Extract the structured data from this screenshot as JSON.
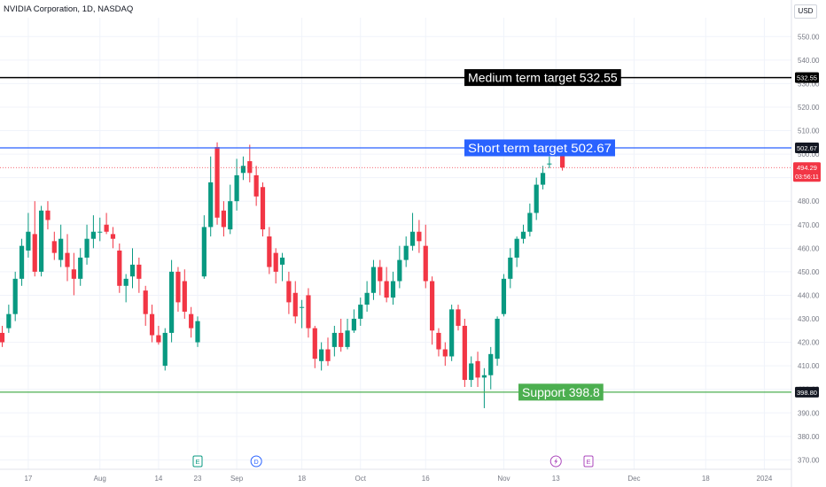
{
  "header": {
    "symbol_title": "NVIDIA Corporation, 1D, NASDAQ",
    "currency": "USD"
  },
  "colors": {
    "up": "#089981",
    "down": "#f23645",
    "medium_line": "#000000",
    "short_line": "#2962ff",
    "support_line": "#4caf50",
    "price_line": "#f23645",
    "grid": "#f0f3fa",
    "axis_text": "#787b86"
  },
  "chart_data": {
    "type": "candlestick",
    "ylim": [
      366,
      558
    ],
    "y_ticks": [
      370,
      380,
      390,
      400,
      410,
      420,
      430,
      440,
      450,
      460,
      470,
      480,
      490,
      500,
      510,
      520,
      530,
      540,
      550
    ],
    "x_tick_labels": [
      {
        "label": "17",
        "bar": 4
      },
      {
        "label": "Aug",
        "bar": 15
      },
      {
        "label": "14",
        "bar": 24
      },
      {
        "label": "23",
        "bar": 30
      },
      {
        "label": "Sep",
        "bar": 36
      },
      {
        "label": "18",
        "bar": 46
      },
      {
        "label": "Oct",
        "bar": 55
      },
      {
        "label": "16",
        "bar": 65
      },
      {
        "label": "Nov",
        "bar": 77
      },
      {
        "label": "13",
        "bar": 85
      },
      {
        "label": "Dec",
        "bar": 97
      },
      {
        "label": "18",
        "bar": 108
      },
      {
        "label": "2024",
        "bar": 117
      }
    ],
    "candles": [
      [
        424,
        420,
        427,
        418
      ],
      [
        426,
        432,
        436,
        424
      ],
      [
        432,
        447,
        450,
        429
      ],
      [
        447,
        461,
        464,
        444
      ],
      [
        459,
        467,
        475,
        456
      ],
      [
        466,
        450,
        480,
        448
      ],
      [
        450,
        476,
        478,
        448
      ],
      [
        476,
        472,
        480,
        468
      ],
      [
        463,
        458,
        467,
        455
      ],
      [
        455,
        464,
        470,
        452
      ],
      [
        458,
        452,
        466,
        446
      ],
      [
        451,
        447,
        458,
        440
      ],
      [
        447,
        456,
        460,
        444
      ],
      [
        456,
        464,
        470,
        453
      ],
      [
        464,
        467,
        474,
        460
      ],
      [
        467,
        467,
        473,
        463
      ],
      [
        470,
        467,
        475,
        466
      ],
      [
        466,
        464,
        469,
        460
      ],
      [
        459,
        444,
        462,
        441
      ],
      [
        444,
        447,
        449,
        437
      ],
      [
        448,
        453,
        460,
        443
      ],
      [
        453,
        447,
        456,
        441
      ],
      [
        442,
        432,
        444,
        427
      ],
      [
        432,
        423,
        436,
        420
      ],
      [
        423,
        420,
        427,
        419
      ],
      [
        410,
        424,
        426,
        408
      ],
      [
        424,
        450,
        455,
        420
      ],
      [
        450,
        437,
        452,
        433
      ],
      [
        446,
        433,
        451,
        430
      ],
      [
        432,
        426,
        435,
        422
      ],
      [
        420,
        429,
        431,
        418
      ],
      [
        448,
        469,
        474,
        447
      ],
      [
        469,
        488,
        499,
        465
      ],
      [
        503,
        473,
        505,
        470
      ],
      [
        476,
        469,
        480,
        465
      ],
      [
        468,
        480,
        487,
        466
      ],
      [
        480,
        491,
        498,
        476
      ],
      [
        492,
        495,
        499,
        489
      ],
      [
        497,
        492,
        504,
        488
      ],
      [
        491,
        482,
        495,
        478
      ],
      [
        486,
        468,
        488,
        465
      ],
      [
        465,
        452,
        469,
        449
      ],
      [
        458,
        450,
        460,
        445
      ],
      [
        453,
        456,
        458,
        446
      ],
      [
        446,
        437,
        450,
        432
      ],
      [
        441,
        431,
        446,
        428
      ],
      [
        435,
        435,
        438,
        426
      ],
      [
        440,
        426,
        443,
        422
      ],
      [
        426,
        413,
        427,
        409
      ],
      [
        412,
        417,
        420,
        408
      ],
      [
        417,
        412,
        422,
        410
      ],
      [
        418,
        424,
        427,
        414
      ],
      [
        424,
        418,
        430,
        416
      ],
      [
        418,
        425,
        430,
        417
      ],
      [
        425,
        430,
        434,
        424
      ],
      [
        430,
        436,
        439,
        427
      ],
      [
        436,
        441,
        446,
        433
      ],
      [
        441,
        452,
        455,
        438
      ],
      [
        452,
        446,
        455,
        440
      ],
      [
        446,
        439,
        452,
        437
      ],
      [
        439,
        446,
        450,
        436
      ],
      [
        446,
        455,
        461,
        443
      ],
      [
        455,
        461,
        465,
        452
      ],
      [
        461,
        467,
        475,
        459
      ],
      [
        467,
        463,
        472,
        458
      ],
      [
        461,
        446,
        470,
        443
      ],
      [
        446,
        425,
        448,
        419
      ],
      [
        424,
        417,
        426,
        414
      ],
      [
        417,
        414,
        420,
        410
      ],
      [
        414,
        434,
        436,
        412
      ],
      [
        434,
        427,
        436,
        425
      ],
      [
        427,
        404,
        430,
        401
      ],
      [
        404,
        411,
        414,
        401
      ],
      [
        412,
        405,
        416,
        401
      ],
      [
        405,
        406,
        409,
        392
      ],
      [
        406,
        415,
        418,
        400
      ],
      [
        413,
        430,
        431,
        410
      ],
      [
        432,
        447,
        449,
        431
      ],
      [
        447,
        456,
        460,
        443
      ],
      [
        456,
        464,
        465,
        452
      ],
      [
        464,
        467,
        470,
        462
      ],
      [
        467,
        475,
        479,
        465
      ],
      [
        475,
        487,
        490,
        472
      ],
      [
        487,
        492,
        495,
        485
      ],
      [
        496,
        496,
        499,
        494
      ],
      [
        500,
        502,
        504,
        499
      ],
      [
        503,
        494.29,
        505,
        493
      ]
    ],
    "lines": [
      {
        "label": "Medium term target 532.55",
        "price": 532.55,
        "tag": "532.55"
      },
      {
        "label": "Short term target 502.67",
        "price": 502.67,
        "tag": "502.67"
      },
      {
        "label": "Support 398.8",
        "price": 398.8,
        "tag": "398.80"
      }
    ],
    "last_price": {
      "value": "494.29",
      "countdown": "03:56:11",
      "price": 494.29
    },
    "events": [
      {
        "icon": "E",
        "bar": 30
      },
      {
        "icon": "D",
        "bar": 39
      },
      {
        "icon": "flash",
        "bar": 85
      },
      {
        "icon": "E",
        "bar": 90
      }
    ]
  }
}
